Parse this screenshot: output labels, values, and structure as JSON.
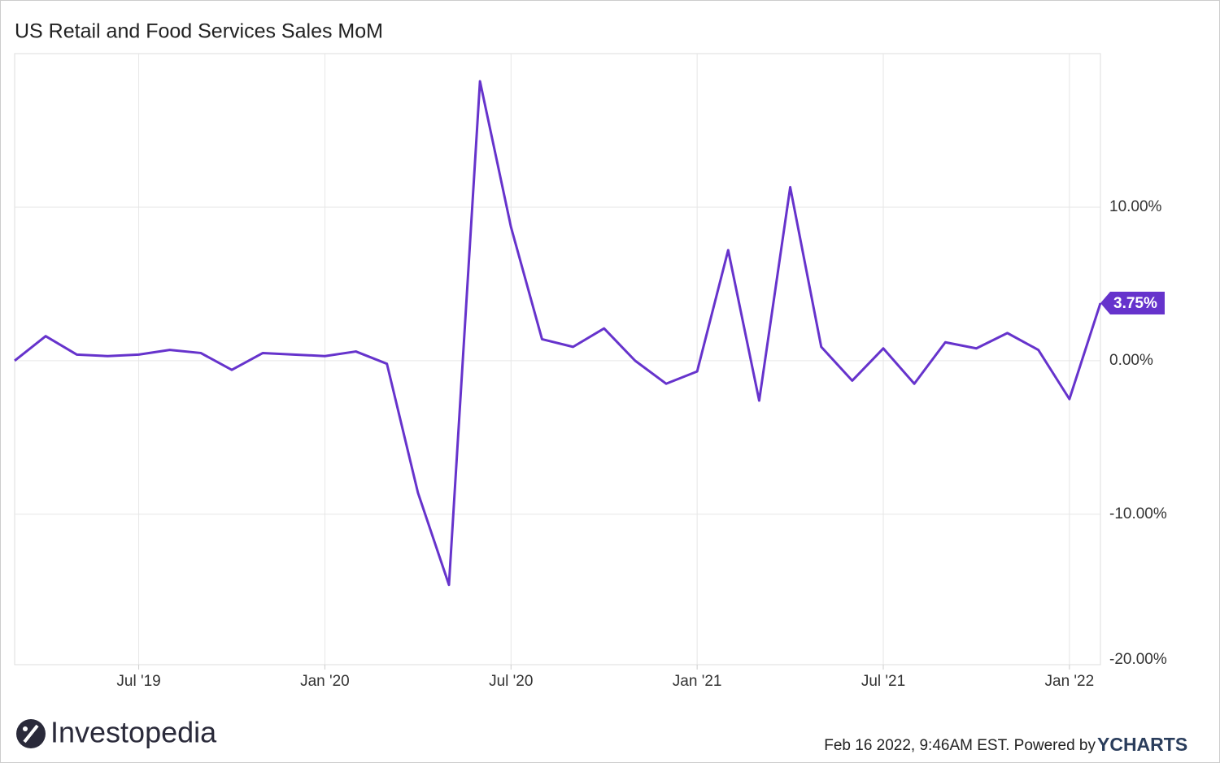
{
  "chart_data": {
    "type": "line",
    "title": "US Retail and Food Services Sales MoM",
    "x": [
      "2019-03",
      "2019-04",
      "2019-05",
      "2019-06",
      "2019-07",
      "2019-08",
      "2019-09",
      "2019-10",
      "2019-11",
      "2019-12",
      "2020-01",
      "2020-02",
      "2020-03",
      "2020-04",
      "2020-05",
      "2020-06",
      "2020-07",
      "2020-08",
      "2020-09",
      "2020-10",
      "2020-11",
      "2020-12",
      "2021-01",
      "2021-02",
      "2021-03",
      "2021-04",
      "2021-05",
      "2021-06",
      "2021-07",
      "2021-08",
      "2021-09",
      "2021-10",
      "2021-11",
      "2021-12",
      "2022-01",
      "2022-02"
    ],
    "series": [
      {
        "name": "US Retail and Food Services Sales MoM",
        "color": "#6633cc",
        "values": [
          0,
          1.6,
          0.4,
          0.3,
          0.4,
          0.7,
          0.5,
          -0.6,
          0.5,
          0.4,
          0.3,
          0.6,
          -0.2,
          -8.6,
          -14.6,
          18.2,
          8.7,
          1.4,
          0.9,
          2.1,
          0,
          -1.5,
          -0.7,
          7.2,
          -2.6,
          11.3,
          0.9,
          -1.3,
          0.8,
          -1.5,
          1.2,
          0.8,
          1.8,
          0.7,
          -2.5,
          3.75
        ],
        "value_labels": [
          null,
          null,
          null,
          null,
          null,
          null,
          null,
          null,
          null,
          null,
          null,
          null,
          null,
          null,
          null,
          null,
          null,
          null,
          null,
          null,
          null,
          null,
          null,
          null,
          null,
          null,
          null,
          null,
          null,
          null,
          null,
          null,
          null,
          null,
          null,
          "3.75%"
        ]
      }
    ],
    "xlim": [
      "2019-03",
      "2022-02"
    ],
    "xticks": [
      {
        "value": "2019-07",
        "label": "Jul '19"
      },
      {
        "value": "2020-01",
        "label": "Jan '20"
      },
      {
        "value": "2020-07",
        "label": "Jul '20"
      },
      {
        "value": "2021-01",
        "label": "Jan '21"
      },
      {
        "value": "2021-07",
        "label": "Jul '21"
      },
      {
        "value": "2022-01",
        "label": "Jan '22"
      }
    ],
    "ylim": [
      -19.8,
      20
    ],
    "yticks": [
      {
        "value": -20,
        "label": "-20.00%"
      },
      {
        "value": -10,
        "label": "-10.00%"
      },
      {
        "value": 0,
        "label": "0.00%"
      },
      {
        "value": 10,
        "label": "10.00%"
      }
    ],
    "grid": true
  },
  "footer": {
    "brand": "Investopedia",
    "timestamp": "Feb 16 2022, 9:46AM EST. Powered by",
    "powered": "YCHARTS"
  }
}
